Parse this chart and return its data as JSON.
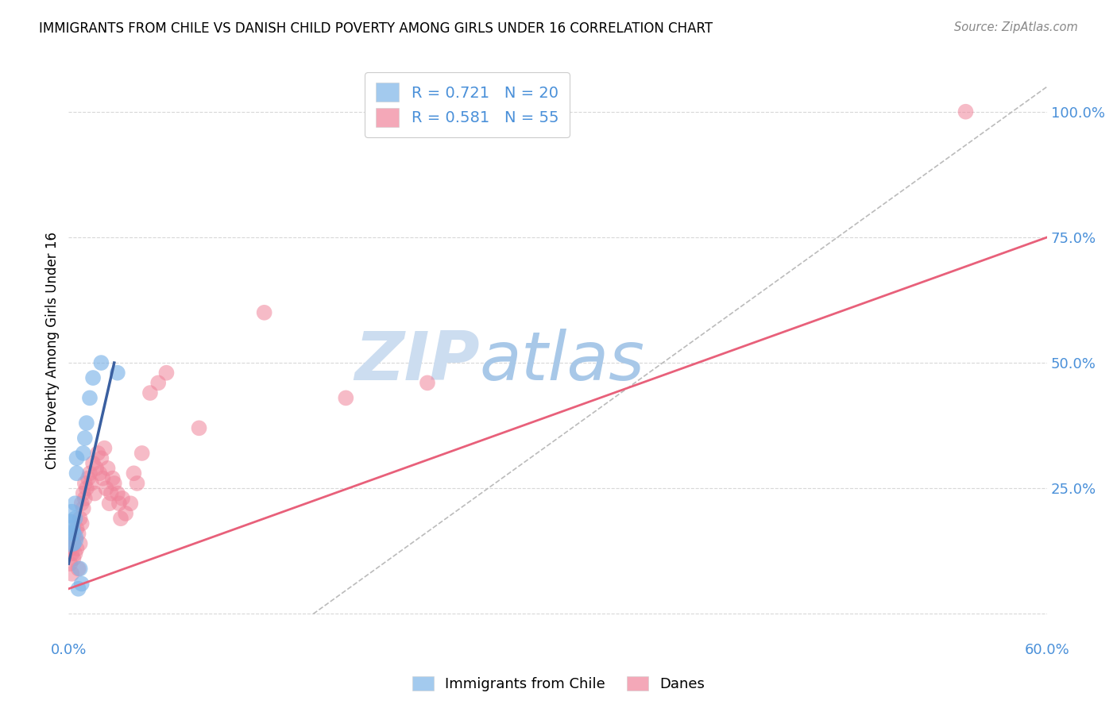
{
  "title": "IMMIGRANTS FROM CHILE VS DANISH CHILD POVERTY AMONG GIRLS UNDER 16 CORRELATION CHART",
  "source": "Source: ZipAtlas.com",
  "ylabel": "Child Poverty Among Girls Under 16",
  "xlim": [
    0.0,
    0.6
  ],
  "ylim": [
    -0.05,
    1.1
  ],
  "blue_color": "#7db4e8",
  "pink_color": "#f0849a",
  "blue_line_color": "#3a5fa0",
  "pink_line_color": "#e8607a",
  "grid_color": "#d8d8d8",
  "watermark_color": "#ccddf0",
  "legend_r1": "R = 0.721",
  "legend_n1": "N = 20",
  "legend_r2": "R = 0.581",
  "legend_n2": "N = 55",
  "blue_scatter_x": [
    0.001,
    0.001,
    0.002,
    0.002,
    0.003,
    0.003,
    0.004,
    0.004,
    0.005,
    0.005,
    0.006,
    0.007,
    0.008,
    0.009,
    0.01,
    0.011,
    0.013,
    0.015,
    0.02,
    0.03
  ],
  "blue_scatter_y": [
    0.15,
    0.18,
    0.17,
    0.2,
    0.14,
    0.16,
    0.19,
    0.22,
    0.28,
    0.31,
    0.05,
    0.09,
    0.06,
    0.32,
    0.35,
    0.38,
    0.43,
    0.47,
    0.5,
    0.48
  ],
  "blue_scatter_size": [
    600,
    300,
    250,
    300,
    200,
    200,
    200,
    200,
    200,
    200,
    200,
    200,
    200,
    200,
    200,
    200,
    200,
    200,
    200,
    200
  ],
  "pink_scatter_x": [
    0.001,
    0.001,
    0.002,
    0.002,
    0.003,
    0.003,
    0.004,
    0.004,
    0.005,
    0.005,
    0.006,
    0.006,
    0.007,
    0.007,
    0.008,
    0.008,
    0.009,
    0.009,
    0.01,
    0.01,
    0.011,
    0.012,
    0.013,
    0.014,
    0.015,
    0.016,
    0.017,
    0.018,
    0.019,
    0.02,
    0.021,
    0.022,
    0.023,
    0.024,
    0.025,
    0.026,
    0.027,
    0.028,
    0.03,
    0.031,
    0.032,
    0.033,
    0.035,
    0.038,
    0.04,
    0.042,
    0.045,
    0.05,
    0.055,
    0.06,
    0.08,
    0.12,
    0.17,
    0.22,
    0.55
  ],
  "pink_scatter_y": [
    0.1,
    0.13,
    0.08,
    0.12,
    0.14,
    0.11,
    0.15,
    0.12,
    0.13,
    0.17,
    0.16,
    0.09,
    0.19,
    0.14,
    0.18,
    0.22,
    0.21,
    0.24,
    0.23,
    0.26,
    0.25,
    0.27,
    0.28,
    0.26,
    0.3,
    0.24,
    0.29,
    0.32,
    0.28,
    0.31,
    0.27,
    0.33,
    0.25,
    0.29,
    0.22,
    0.24,
    0.27,
    0.26,
    0.24,
    0.22,
    0.19,
    0.23,
    0.2,
    0.22,
    0.28,
    0.26,
    0.32,
    0.44,
    0.46,
    0.48,
    0.37,
    0.6,
    0.43,
    0.46,
    1.0
  ],
  "pink_scatter_size": [
    200,
    200,
    200,
    200,
    200,
    200,
    200,
    200,
    200,
    200,
    200,
    200,
    200,
    200,
    200,
    200,
    200,
    200,
    200,
    200,
    200,
    200,
    200,
    200,
    200,
    200,
    200,
    200,
    200,
    200,
    200,
    200,
    200,
    200,
    200,
    200,
    200,
    200,
    200,
    200,
    200,
    200,
    200,
    200,
    200,
    200,
    200,
    200,
    200,
    200,
    200,
    200,
    200,
    200,
    200
  ],
  "pink_line_x0": 0.0,
  "pink_line_y0": 0.05,
  "pink_line_x1": 0.6,
  "pink_line_y1": 0.75,
  "blue_line_x0": 0.0,
  "blue_line_y0": 0.1,
  "blue_line_x1": 0.028,
  "blue_line_y1": 0.5,
  "diag_line_x0": 0.15,
  "diag_line_y0": 0.0,
  "diag_line_x1": 0.6,
  "diag_line_y1": 1.05
}
